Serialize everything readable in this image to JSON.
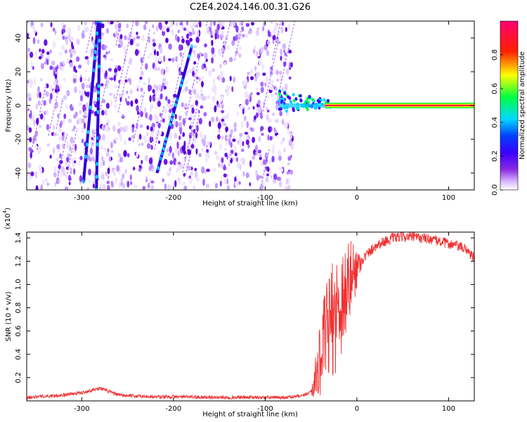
{
  "title": "C2E4.2024.146.00.31.G26",
  "chart_data": [
    {
      "type": "heatmap",
      "xlabel": "Height of straight line (km)",
      "ylabel": "Frequency (Hz)",
      "xlim": [
        -360,
        128
      ],
      "ylim": [
        -50,
        50
      ],
      "x_ticks": [
        -300,
        -200,
        -100,
        0,
        100
      ],
      "y_ticks": [
        -40,
        -20,
        0,
        20,
        40
      ],
      "colorbar": {
        "label": "Normalized spectral amplitude",
        "range": [
          0.0,
          1.0
        ],
        "ticks": [
          0.0,
          0.2,
          0.4,
          0.6,
          0.8
        ],
        "colors": [
          "#ffffff",
          "#d8b8ff",
          "#8a2be2",
          "#3a00ff",
          "#00d8ff",
          "#00ff40",
          "#ffff00",
          "#ff2000",
          "#ff0070"
        ]
      },
      "features": {
        "noise_region_x": [
          -360,
          -76
        ],
        "streak_lines": [
          {
            "x": [
              -298,
              -282
            ],
            "y": [
              -45,
              50
            ]
          },
          {
            "x": [
              -284,
              -280
            ],
            "y": [
              -50,
              50
            ]
          },
          {
            "x": [
              -218,
              -180
            ],
            "y": [
              -40,
              35
            ]
          }
        ],
        "carrier_line": {
          "x": [
            -85,
            128
          ],
          "y": 0
        }
      }
    },
    {
      "type": "line",
      "xlabel": "Height of straight line (km)",
      "ylabel": "SNR (10 * v/v)",
      "y_multiplier": "(x10",
      "y_multiplier_exp": "4",
      "y_multiplier_close": ")",
      "xlim": [
        -360,
        128
      ],
      "ylim": [
        0,
        14500
      ],
      "x_ticks": [
        -300,
        -200,
        -100,
        0,
        100
      ],
      "y_ticks": [
        0.2,
        0.4,
        0.6,
        0.8,
        1.0,
        1.2,
        1.4
      ],
      "color": "#f03030",
      "x": [
        -360,
        -340,
        -320,
        -300,
        -290,
        -280,
        -270,
        -260,
        -240,
        -220,
        -200,
        -180,
        -160,
        -140,
        -120,
        -100,
        -80,
        -60,
        -50,
        -45,
        -40,
        -35,
        -30,
        -25,
        -20,
        -15,
        -10,
        -5,
        0,
        5,
        10,
        20,
        30,
        40,
        50,
        60,
        70,
        80,
        90,
        100,
        110,
        120,
        128
      ],
      "values": [
        300,
        400,
        500,
        700,
        900,
        1100,
        800,
        500,
        400,
        350,
        350,
        350,
        300,
        300,
        300,
        300,
        300,
        400,
        800,
        2000,
        3500,
        5500,
        6500,
        7200,
        8000,
        9000,
        9800,
        10800,
        11500,
        12000,
        12500,
        13300,
        13700,
        14000,
        14100,
        14100,
        14000,
        13900,
        13700,
        13500,
        13300,
        13000,
        12200
      ]
    }
  ]
}
